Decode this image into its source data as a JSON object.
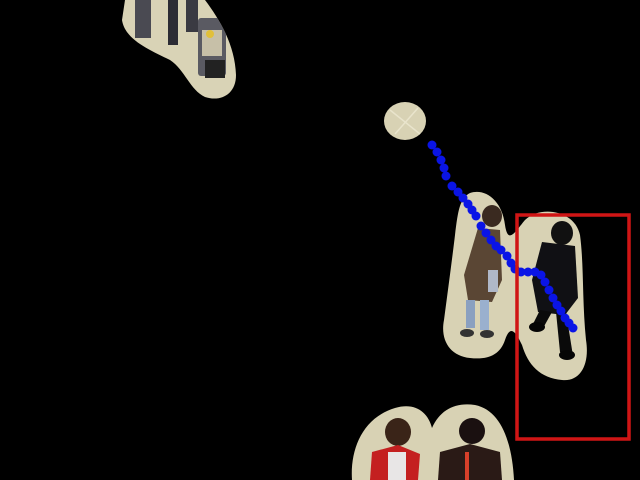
{
  "scene": {
    "description_visible_text": "",
    "colors": {
      "background": "#000000",
      "floor": "#d8d2b4",
      "tile_line": "#e9e4cc",
      "trajectory": "#0a14e6",
      "bounding_box": "#d01515"
    },
    "tracked_box_count_visible": 1
  }
}
